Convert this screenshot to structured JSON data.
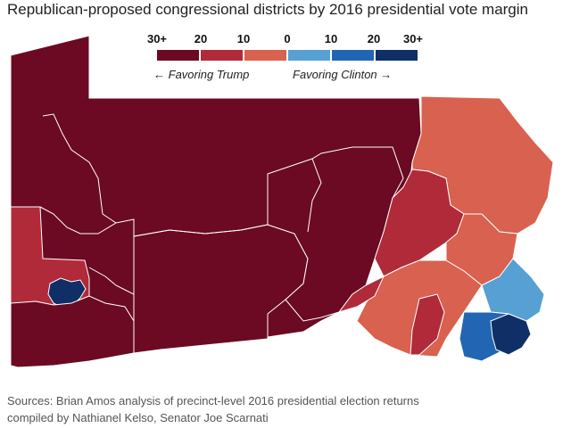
{
  "title": "Republican-proposed congressional districts by 2016 presidential vote margin",
  "legend": {
    "ticks": [
      "30+",
      "20",
      "10",
      "0",
      "10",
      "20",
      "30+"
    ],
    "favoring_trump": "Favoring Trump",
    "favoring_clinton": "Favoring Clinton",
    "arrow_left": "←",
    "arrow_right": "→",
    "colors": [
      "#6b0a22",
      "#b02a3a",
      "#d9614f",
      "#56a0d3",
      "#2266b3",
      "#0f2f66"
    ]
  },
  "map": {
    "state": "Pennsylvania",
    "district_colors": {
      "trump_30_plus": "#6b0a22",
      "trump_20_30": "#b02a3a",
      "trump_10_20": "#d9614f",
      "clinton_0_10": "#56a0d3",
      "clinton_10_20": "#2266b3",
      "clinton_30_plus": "#0f2f66"
    }
  },
  "sources": {
    "line1": "Sources: Brian Amos analysis of precinct-level 2016 presidential election returns",
    "line2": "compiled by Nathianel Kelso, Senator Joe Scarnati"
  }
}
